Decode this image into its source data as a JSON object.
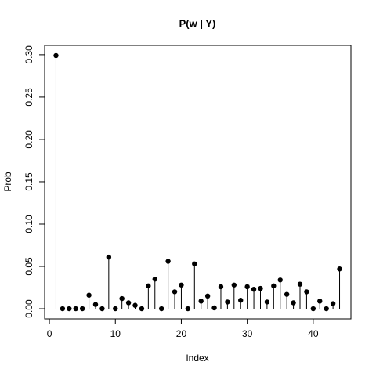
{
  "chart_data": {
    "type": "stem",
    "title": "P(w | Y)",
    "x_label": "Index",
    "y_label": "Prob",
    "x": [
      1,
      2,
      3,
      4,
      5,
      6,
      7,
      8,
      9,
      10,
      11,
      12,
      13,
      14,
      15,
      16,
      17,
      18,
      19,
      20,
      21,
      22,
      23,
      24,
      25,
      26,
      27,
      28,
      29,
      30,
      31,
      32,
      33,
      34,
      35,
      36,
      37,
      38,
      39,
      40,
      41,
      42,
      43,
      44
    ],
    "values": [
      0.299,
      0,
      0,
      0,
      0,
      0.016,
      0.005,
      0,
      0.061,
      0,
      0.012,
      0.007,
      0.004,
      0,
      0.027,
      0.035,
      0,
      0.056,
      0.02,
      0.028,
      0,
      0.053,
      0.009,
      0.015,
      0.001,
      0.026,
      0.008,
      0.028,
      0.01,
      0.026,
      0.023,
      0.024,
      0.008,
      0.027,
      0.034,
      0.017,
      0.007,
      0.029,
      0.02,
      0,
      0.009,
      0,
      0.006,
      0.047
    ],
    "color": "#000000",
    "xlim": [
      -0.72,
      45.72
    ],
    "xticks": [
      0,
      10,
      20,
      30,
      40
    ],
    "ylim": [
      -0.012,
      0.311
    ],
    "yticks": [
      {
        "value": 0,
        "label": "0.00"
      },
      {
        "value": 0.05,
        "label": "0.05"
      },
      {
        "value": 0.1,
        "label": "0.10"
      },
      {
        "value": 0.15,
        "label": "0.15"
      },
      {
        "value": 0.2,
        "label": "0.20"
      },
      {
        "value": 0.25,
        "label": "0.25"
      },
      {
        "value": 0.3,
        "label": "0.30"
      }
    ]
  }
}
